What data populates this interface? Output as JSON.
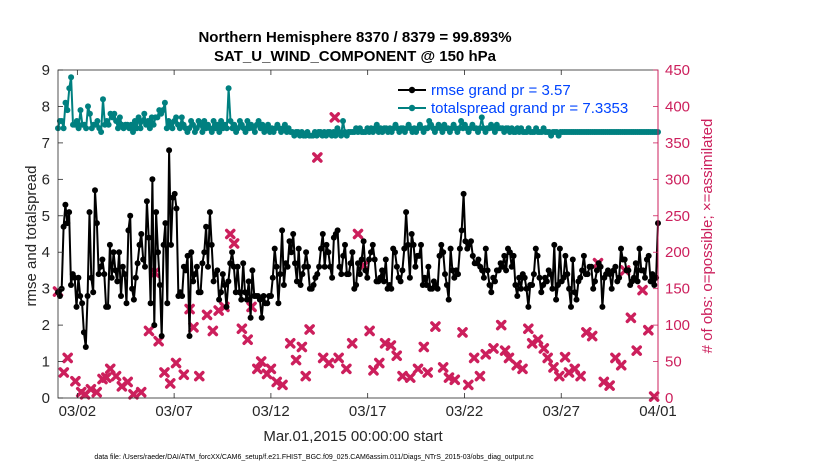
{
  "chart_data": {
    "type": "line",
    "title_line1": "Northern Hemisphere 8370 / 8379 = 99.893%",
    "title_line2": "SAT_U_WIND_COMPONENT @ 150 hPa",
    "xlabel": "Mar.01,2015 00:00:00 start",
    "ylabel_left": "rmse and totalspread",
    "ylabel_right": "# of obs: o=possible; ×=assimilated",
    "x_range_days": [
      0,
      31
    ],
    "ylim_left": [
      0,
      9
    ],
    "ylim_right": [
      0,
      450
    ],
    "x_ticks": [
      {
        "day": 1,
        "label": "03/02"
      },
      {
        "day": 6,
        "label": "03/07"
      },
      {
        "day": 11,
        "label": "03/12"
      },
      {
        "day": 16,
        "label": "03/17"
      },
      {
        "day": 21,
        "label": "03/22"
      },
      {
        "day": 26,
        "label": "03/27"
      },
      {
        "day": 31,
        "label": "04/01"
      }
    ],
    "y_ticks_left": [
      "0",
      "1",
      "2",
      "3",
      "4",
      "5",
      "6",
      "7",
      "8",
      "9"
    ],
    "y_ticks_right": [
      "0",
      "50",
      "100",
      "150",
      "200",
      "250",
      "300",
      "350",
      "400",
      "450"
    ],
    "legend_rmse": "rmse grand pr = 3.57",
    "legend_spread": "totalspread grand pr = 7.3353",
    "colors": {
      "rmse": "#000000",
      "spread": "#008080",
      "obs": "#cc1f5c",
      "legend_text": "#0044ff",
      "right_axis": "#cc1f5c"
    },
    "series": [
      {
        "name": "rmse",
        "values": [
          2.9,
          2.8,
          3.0,
          4.7,
          5.3,
          4.8,
          5.1,
          3.1,
          3.4,
          3.3,
          2.5,
          3.3,
          2.8,
          2.6,
          1.8,
          1.4,
          2.8,
          5.1,
          3.3,
          2.9,
          5.7,
          4.8,
          3.4,
          3.6,
          3.8,
          3.4,
          2.5,
          2.5,
          4.2,
          3.3,
          4.0,
          3.5,
          3.2,
          4.0,
          2.8,
          3.6,
          3.4,
          2.6,
          4.6,
          5.0,
          3.0,
          2.7,
          3.3,
          3.7,
          4.2,
          4.5,
          3.8,
          3.6,
          5.4,
          4.4,
          2.6,
          6.0,
          2.0,
          5.1,
          4.0,
          3.1,
          1.7,
          4.2,
          4.8,
          2.6,
          6.8,
          4.2,
          5.5,
          5.6,
          5.2,
          2.8,
          2.9,
          2.8,
          3.6,
          3.5,
          3.9,
          1.7,
          4.0,
          3.2,
          3.4,
          3.6,
          2.9,
          2.9,
          3.7,
          4.0,
          4.7,
          3.6,
          5.1,
          4.2,
          3.2,
          3.4,
          3.5,
          2.7,
          2.9,
          3.4,
          3.1,
          2.5,
          3.2,
          3.7,
          4.0,
          3.6,
          2.9,
          3.6,
          2.9,
          2.7,
          3.7,
          2.9,
          2.7,
          3.2,
          2.2,
          3.5,
          2.8,
          2.8,
          2.8,
          2.7,
          2.2,
          2.8,
          2.6,
          2.6,
          2.8,
          2.8,
          3.3,
          4.1,
          3.6,
          2.6,
          3.4,
          4.6,
          3.1,
          3.7,
          3.6,
          4.3,
          4.0,
          4.5,
          3.7,
          3.2,
          4.1,
          3.1,
          3.4,
          3.6,
          4.0,
          3.6,
          3.0,
          3.0,
          3.1,
          3.3,
          3.4,
          3.6,
          4.1,
          4.5,
          3.6,
          4.2,
          4.0,
          3.6,
          3.3,
          4.4,
          4.5,
          4.6,
          3.6,
          3.4,
          3.9,
          4.2,
          3.4,
          3.4,
          3.7,
          4.0,
          3.0,
          3.1,
          3.7,
          3.4,
          3.8,
          4.3,
          3.5,
          3.3,
          3.8,
          4.0,
          4.2,
          3.8,
          3.2,
          3.2,
          3.3,
          3.5,
          3.2,
          3.8,
          3.0,
          3.1,
          3.0,
          4.1,
          4.0,
          3.6,
          3.3,
          3.2,
          3.5,
          4.1,
          5.1,
          4.2,
          3.3,
          4.5,
          4.2,
          3.6,
          3.9,
          3.9,
          4.2,
          3.1,
          3.3,
          3.1,
          3.6,
          3.0,
          3.0,
          3.2,
          3.1,
          3.0,
          3.9,
          4.2,
          4.0,
          3.4,
          3.1,
          2.7,
          4.1,
          3.5,
          3.3,
          3.5,
          3.4,
          4.1,
          4.6,
          5.6,
          4.3,
          4.1,
          4.2,
          4.3,
          3.9,
          3.7,
          3.7,
          3.8,
          3.6,
          3.5,
          3.3,
          4.1,
          3.5,
          3.1,
          2.9,
          3.3,
          3.2,
          3.5,
          3.5,
          3.7,
          3.6,
          3.9,
          3.5,
          4.1,
          4.0,
          3.6,
          3.9,
          3.1,
          2.8,
          3.3,
          3.0,
          3.4,
          3.3,
          3.0,
          2.5,
          3.1,
          3.1,
          3.4,
          4.1,
          3.9,
          3.3,
          2.9,
          3.1,
          3.3,
          3.2,
          3.5,
          3.4,
          3.0,
          4.2,
          2.7,
          3.1,
          4.1,
          3.2,
          3.3,
          3.9,
          3.4,
          3.0,
          2.5,
          3.8,
          2.9,
          2.7,
          3.2,
          3.3,
          3.5,
          3.9,
          3.4,
          3.4,
          3.6,
          3.6,
          3.0,
          3.2,
          3.5,
          3.7,
          3.6,
          2.5,
          3.3,
          3.4,
          3.5,
          3.4,
          3.0,
          3.5,
          3.6,
          3.2,
          3.3,
          4.1,
          3.8,
          3.8,
          3.5,
          3.5,
          3.1,
          3.2,
          3.3,
          3.7,
          3.2,
          4.1,
          3.5,
          3.5,
          3.3,
          3.8,
          3.9,
          3.2,
          3.4,
          3.1,
          3.3,
          4.8
        ]
      },
      {
        "name": "totalspread",
        "values": [
          7.4,
          7.6,
          7.6,
          7.4,
          8.1,
          7.9,
          8.5,
          8.8,
          7.5,
          7.5,
          7.6,
          7.4,
          7.9,
          7.5,
          7.5,
          7.4,
          8.0,
          7.8,
          7.4,
          7.5,
          7.5,
          7.6,
          7.4,
          7.3,
          8.2,
          7.5,
          7.6,
          7.5,
          7.8,
          7.7,
          7.8,
          7.6,
          7.4,
          7.7,
          7.5,
          7.4,
          7.5,
          7.5,
          7.4,
          7.5,
          7.3,
          7.6,
          7.4,
          7.7,
          7.4,
          7.6,
          7.8,
          7.5,
          7.6,
          7.4,
          7.7,
          7.5,
          7.7,
          7.7,
          7.9,
          7.8,
          7.9,
          8.1,
          7.4,
          7.6,
          7.5,
          7.4,
          7.6,
          7.7,
          7.5,
          7.4,
          7.7,
          7.5,
          7.4,
          7.3,
          7.4,
          7.6,
          7.5,
          7.3,
          7.4,
          7.6,
          7.5,
          7.3,
          7.6,
          7.4,
          7.5,
          7.4,
          7.3,
          7.6,
          7.4,
          7.5,
          7.3,
          7.6,
          7.4,
          7.5,
          7.4,
          8.5,
          7.6,
          7.4,
          7.5,
          7.3,
          7.4,
          7.6,
          7.5,
          7.4,
          7.3,
          7.6,
          7.4,
          7.5,
          7.4,
          7.3,
          7.5,
          7.6,
          7.4,
          7.5,
          7.3,
          7.4,
          7.5,
          7.3,
          7.4,
          7.3,
          7.4,
          7.5,
          7.4,
          7.3,
          7.4,
          7.5,
          7.3,
          7.4,
          7.3,
          7.3,
          7.2,
          7.3,
          7.3,
          7.2,
          7.3,
          7.2,
          7.2,
          7.3,
          7.2,
          7.2,
          7.2,
          7.3,
          7.2,
          7.3,
          7.3,
          7.2,
          7.3,
          7.2,
          7.3,
          7.3,
          7.2,
          7.3,
          7.2,
          7.4,
          7.3,
          7.2,
          7.6,
          7.3,
          7.2,
          7.3,
          7.3,
          7.3,
          7.3,
          7.4,
          7.3,
          7.4,
          7.3,
          7.3,
          7.3,
          7.4,
          7.3,
          7.4,
          7.3,
          7.4,
          7.5,
          7.3,
          7.4,
          7.3,
          7.4,
          7.4,
          7.3,
          7.4,
          7.3,
          7.4,
          7.5,
          7.4,
          7.3,
          7.4,
          7.4,
          7.3,
          7.4,
          7.5,
          7.4,
          7.3,
          7.4,
          7.3,
          7.4,
          7.5,
          7.4,
          7.3,
          7.4,
          7.4,
          7.6,
          7.5,
          7.4,
          7.3,
          7.4,
          7.5,
          7.4,
          7.3,
          7.5,
          7.4,
          7.4,
          7.3,
          7.4,
          7.5,
          7.4,
          7.3,
          7.4,
          7.6,
          7.4,
          7.5,
          7.4,
          7.3,
          7.4,
          7.5,
          7.4,
          7.4,
          7.3,
          7.4,
          7.7,
          7.4,
          7.3,
          7.4,
          7.4,
          7.5,
          7.4,
          7.3,
          7.5,
          7.4,
          7.4,
          7.4,
          7.3,
          7.4,
          7.4,
          7.3,
          7.4,
          7.3,
          7.3,
          7.4,
          7.3,
          7.4,
          7.3,
          7.3,
          7.3,
          7.4,
          7.3,
          7.3,
          7.3,
          7.4,
          7.3,
          7.3,
          7.3,
          7.4,
          7.3,
          7.3,
          7.3,
          7.2,
          7.3,
          7.3,
          7.3,
          7.2,
          7.3,
          7.3,
          7.3,
          7.3,
          7.3,
          7.3,
          7.3,
          7.3,
          7.3,
          7.3,
          7.3,
          7.3,
          7.3,
          7.3,
          7.3,
          7.3,
          7.3,
          7.3,
          7.3,
          7.3,
          7.3,
          7.3,
          7.3,
          7.3,
          7.3,
          7.3,
          7.3,
          7.3,
          7.3,
          7.3,
          7.3,
          7.3,
          7.3,
          7.3,
          7.3,
          7.3,
          7.3,
          7.3,
          7.3,
          7.3,
          7.3,
          7.3,
          7.3,
          7.3,
          7.3,
          7.3,
          7.3,
          7.3,
          7.3,
          7.3,
          7.3,
          7.3,
          7.3
        ]
      },
      {
        "name": "obs_assimilated",
        "points": [
          [
            0.0,
            146
          ],
          [
            0.3,
            35
          ],
          [
            0.5,
            55
          ],
          [
            0.9,
            23
          ],
          [
            1.2,
            8
          ],
          [
            1.4,
            5
          ],
          [
            1.7,
            12
          ],
          [
            2.0,
            8
          ],
          [
            2.3,
            26
          ],
          [
            2.5,
            28
          ],
          [
            2.7,
            40
          ],
          [
            3.0,
            30
          ],
          [
            3.3,
            16
          ],
          [
            3.6,
            22
          ],
          [
            3.9,
            5
          ],
          [
            4.3,
            8
          ],
          [
            4.7,
            92
          ],
          [
            5.0,
            172
          ],
          [
            5.2,
            78
          ],
          [
            5.5,
            35
          ],
          [
            5.8,
            20
          ],
          [
            6.1,
            48
          ],
          [
            6.5,
            32
          ],
          [
            6.8,
            122
          ],
          [
            7.0,
            97
          ],
          [
            7.3,
            30
          ],
          [
            7.7,
            114
          ],
          [
            8.0,
            92
          ],
          [
            8.3,
            120
          ],
          [
            8.6,
            125
          ],
          [
            8.9,
            225
          ],
          [
            9.1,
            212
          ],
          [
            9.5,
            95
          ],
          [
            9.8,
            80
          ],
          [
            10.0,
            125
          ],
          [
            10.3,
            40
          ],
          [
            10.5,
            50
          ],
          [
            10.8,
            33
          ],
          [
            11.0,
            40
          ],
          [
            11.3,
            22
          ],
          [
            11.6,
            18
          ],
          [
            12.0,
            75
          ],
          [
            12.3,
            52
          ],
          [
            12.6,
            70
          ],
          [
            12.8,
            30
          ],
          [
            13.0,
            94
          ],
          [
            13.4,
            330
          ],
          [
            13.7,
            55
          ],
          [
            14.0,
            48
          ],
          [
            14.3,
            385
          ],
          [
            14.5,
            55
          ],
          [
            14.9,
            40
          ],
          [
            15.2,
            75
          ],
          [
            15.5,
            225
          ],
          [
            15.8,
            182
          ],
          [
            16.1,
            92
          ],
          [
            16.3,
            38
          ],
          [
            16.6,
            48
          ],
          [
            16.9,
            75
          ],
          [
            17.2,
            72
          ],
          [
            17.5,
            58
          ],
          [
            17.8,
            30
          ],
          [
            18.2,
            28
          ],
          [
            18.6,
            40
          ],
          [
            18.9,
            70
          ],
          [
            19.1,
            35
          ],
          [
            19.5,
            98
          ],
          [
            19.9,
            42
          ],
          [
            20.2,
            28
          ],
          [
            20.5,
            25
          ],
          [
            20.9,
            90
          ],
          [
            21.2,
            18
          ],
          [
            21.5,
            55
          ],
          [
            21.8,
            30
          ],
          [
            22.1,
            60
          ],
          [
            22.5,
            68
          ],
          [
            22.9,
            100
          ],
          [
            23.1,
            65
          ],
          [
            23.3,
            55
          ],
          [
            23.7,
            45
          ],
          [
            24.0,
            40
          ],
          [
            24.3,
            95
          ],
          [
            24.5,
            75
          ],
          [
            24.8,
            80
          ],
          [
            25.1,
            68
          ],
          [
            25.3,
            55
          ],
          [
            25.6,
            42
          ],
          [
            25.9,
            30
          ],
          [
            26.2,
            56
          ],
          [
            26.4,
            35
          ],
          [
            26.7,
            40
          ],
          [
            27.0,
            30
          ],
          [
            27.3,
            90
          ],
          [
            27.6,
            85
          ],
          [
            27.9,
            185
          ],
          [
            28.2,
            22
          ],
          [
            28.5,
            17
          ],
          [
            28.8,
            55
          ],
          [
            29.1,
            45
          ],
          [
            29.3,
            175
          ],
          [
            29.6,
            110
          ],
          [
            29.9,
            65
          ],
          [
            30.2,
            148
          ],
          [
            30.5,
            93
          ],
          [
            30.8,
            2
          ]
        ]
      }
    ]
  },
  "footer_note": "data file: /Users/raeder/DAI/ATM_forcXX/CAM6_setup/f.e21.FHIST_BGC.f09_025.CAM6assim.011/Diags_NTrS_2015-03/obs_diag_output.nc"
}
